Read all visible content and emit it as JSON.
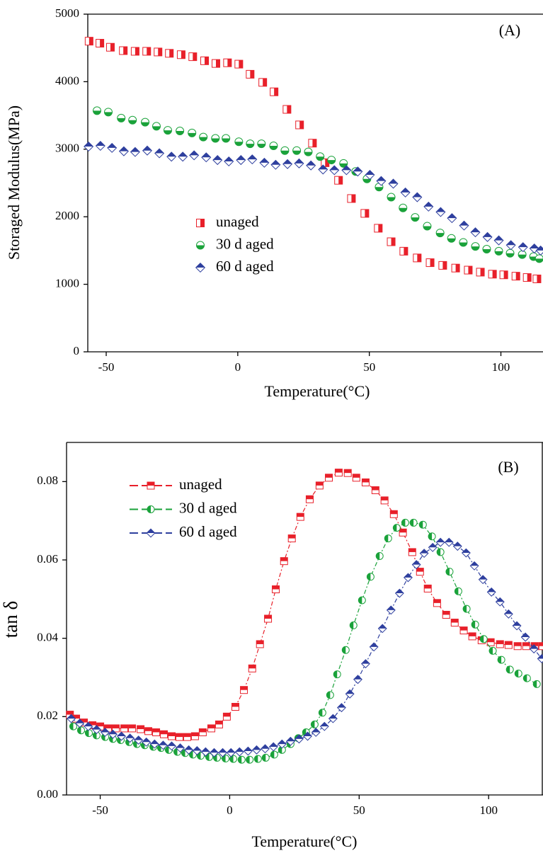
{
  "chart_data": [
    {
      "type": "scatter",
      "annotation": "(A)",
      "xlabel": "Temperature(°C)",
      "ylabel": "Storaged Modulus(MPa)",
      "xlim": [
        -57,
        116
      ],
      "ylim": [
        0,
        5000
      ],
      "xticks": [
        -50,
        0,
        50,
        100
      ],
      "yticks": [
        0,
        1000,
        2000,
        3000,
        4000,
        5000
      ],
      "series": [
        {
          "name": "unaged",
          "color": "#e8202a",
          "marker": "square",
          "half": "right",
          "x": [
            -56.5,
            -52.4,
            -48.4,
            -43.5,
            -39,
            -34.6,
            -30.3,
            -26,
            -21.5,
            -17.1,
            -12.6,
            -8.3,
            -3.9,
            0.4,
            4.7,
            9.5,
            13.8,
            18.7,
            23.5,
            28.4,
            33.2,
            38.3,
            43.2,
            48.3,
            53.4,
            58.3,
            63.1,
            68.2,
            73.1,
            77.9,
            82.8,
            87.6,
            92.2,
            96.8,
            101.1,
            105.7,
            110,
            113.7
          ],
          "values": [
            4600,
            4570,
            4510,
            4460,
            4450,
            4450,
            4440,
            4420,
            4400,
            4370,
            4310,
            4270,
            4280,
            4260,
            4110,
            3990,
            3850,
            3590,
            3360,
            3090,
            2800,
            2540,
            2270,
            2050,
            1830,
            1630,
            1490,
            1390,
            1320,
            1280,
            1240,
            1210,
            1180,
            1150,
            1140,
            1120,
            1100,
            1080
          ]
        },
        {
          "name": "30 d aged",
          "color": "#1aa23a",
          "marker": "circle",
          "half": "bottom",
          "x": [
            -53.5,
            -49.2,
            -44.3,
            -40,
            -35.2,
            -30.9,
            -26.6,
            -22,
            -17.4,
            -13.1,
            -8.5,
            -4.5,
            0.4,
            4.7,
            9,
            13.6,
            17.9,
            22.4,
            26.8,
            31.3,
            35.6,
            40.2,
            44.8,
            49.1,
            53.7,
            58.3,
            62.8,
            67.4,
            72,
            76.9,
            81.2,
            85.7,
            90.3,
            94.6,
            99.2,
            103.5,
            108.1,
            112.4,
            114.6
          ],
          "values": [
            3570,
            3550,
            3460,
            3430,
            3400,
            3340,
            3280,
            3270,
            3240,
            3180,
            3160,
            3160,
            3110,
            3080,
            3080,
            3050,
            2980,
            2980,
            2960,
            2890,
            2840,
            2790,
            2670,
            2560,
            2440,
            2290,
            2130,
            1990,
            1860,
            1760,
            1680,
            1620,
            1560,
            1520,
            1490,
            1460,
            1440,
            1410,
            1380
          ]
        },
        {
          "name": "60 d aged",
          "color": "#2e3f9e",
          "marker": "diamond",
          "half": "top",
          "x": [
            -56.7,
            -52.2,
            -47.8,
            -43.3,
            -39,
            -34.4,
            -29.8,
            -25.2,
            -20.9,
            -16.6,
            -12,
            -7.7,
            -3.4,
            1.2,
            5.5,
            10.1,
            14.4,
            18.9,
            23.3,
            27.8,
            32.4,
            36.7,
            41.3,
            45.6,
            50.2,
            54.5,
            59.1,
            63.7,
            68.2,
            72.5,
            77.1,
            81.4,
            86,
            90.3,
            94.9,
            99.2,
            103.8,
            108.4,
            112.7,
            115.1
          ],
          "values": [
            3040,
            3050,
            3020,
            2970,
            2960,
            2980,
            2940,
            2890,
            2890,
            2910,
            2880,
            2840,
            2820,
            2840,
            2850,
            2800,
            2770,
            2780,
            2790,
            2760,
            2700,
            2690,
            2690,
            2670,
            2620,
            2530,
            2490,
            2360,
            2290,
            2150,
            2070,
            1980,
            1870,
            1770,
            1700,
            1650,
            1580,
            1550,
            1530,
            1500
          ]
        }
      ]
    },
    {
      "type": "scatter",
      "annotation": "(B)",
      "xlabel": "Temperature(°C)",
      "ylabel": "tan δ",
      "line": "dashed",
      "xlim": [
        -63,
        121
      ],
      "ylim": [
        0,
        0.09
      ],
      "xticks": [
        -50,
        0,
        50,
        100
      ],
      "yticks": [
        {
          "value": 0,
          "label": "0.00"
        },
        {
          "value": 0.02,
          "label": "0.02"
        },
        {
          "value": 0.04,
          "label": "0.04"
        },
        {
          "value": 0.06,
          "label": "0.06"
        },
        {
          "value": 0.08,
          "label": "0.08"
        }
      ],
      "series": [
        {
          "name": "unaged",
          "color": "#e8202a",
          "marker": "square",
          "half": "top",
          "x": [
            -61.7,
            -59.3,
            -56.3,
            -53,
            -50,
            -47,
            -44,
            -40.7,
            -37.7,
            -34.4,
            -31.4,
            -28.4,
            -25.4,
            -22.4,
            -19.4,
            -16.4,
            -13.4,
            -10.4,
            -7.1,
            -4.1,
            -1.1,
            2.2,
            5.5,
            8.7,
            11.7,
            14.8,
            17.8,
            21,
            24,
            27.3,
            30.9,
            34.7,
            38.3,
            42.1,
            45.6,
            48.9,
            52.5,
            56.3,
            59.8,
            63.4,
            66.9,
            70.5,
            73.5,
            76.5,
            80.1,
            83.6,
            86.9,
            90.4,
            93.7,
            97.3,
            100.8,
            104.4,
            107.7,
            111.2,
            114.5,
            117.8,
            120.8
          ],
          "values": [
            0.0205,
            0.0195,
            0.0185,
            0.0178,
            0.0175,
            0.017,
            0.017,
            0.017,
            0.017,
            0.0168,
            0.0163,
            0.016,
            0.0155,
            0.015,
            0.0148,
            0.0148,
            0.015,
            0.016,
            0.017,
            0.018,
            0.02,
            0.0225,
            0.0268,
            0.0323,
            0.0385,
            0.045,
            0.0525,
            0.0597,
            0.0655,
            0.071,
            0.0755,
            0.079,
            0.081,
            0.0823,
            0.0822,
            0.081,
            0.0798,
            0.0778,
            0.0752,
            0.0717,
            0.067,
            0.062,
            0.057,
            0.0527,
            0.049,
            0.046,
            0.044,
            0.042,
            0.0405,
            0.0395,
            0.039,
            0.0385,
            0.0383,
            0.038,
            0.038,
            0.038,
            0.038
          ]
        },
        {
          "name": "30 d aged",
          "color": "#1aa23a",
          "marker": "circle",
          "half": "left",
          "x": [
            -60.4,
            -57.4,
            -54.4,
            -51.4,
            -48.1,
            -45.1,
            -42.1,
            -38.8,
            -35.8,
            -32.8,
            -29.5,
            -26.5,
            -23.5,
            -20.2,
            -17.2,
            -14.2,
            -11.2,
            -7.9,
            -4.9,
            -1.6,
            1.4,
            4.6,
            7.7,
            10.9,
            13.9,
            17.2,
            20.2,
            23.5,
            26.5,
            29.5,
            32.8,
            35.8,
            38.8,
            41.5,
            44.8,
            47.8,
            51.1,
            54.4,
            57.9,
            61.2,
            64.5,
            67.8,
            71,
            74.6,
            78.1,
            81.4,
            84.9,
            88.3,
            91.5,
            94.8,
            98.1,
            101.6,
            104.9,
            108.2,
            111.5,
            114.8,
            118.6
          ],
          "values": [
            0.0175,
            0.0165,
            0.0158,
            0.0152,
            0.0148,
            0.0143,
            0.014,
            0.0135,
            0.013,
            0.0127,
            0.0123,
            0.012,
            0.0115,
            0.011,
            0.0107,
            0.0103,
            0.01,
            0.0097,
            0.0095,
            0.0093,
            0.0092,
            0.009,
            0.009,
            0.0092,
            0.0095,
            0.0103,
            0.0115,
            0.013,
            0.0145,
            0.016,
            0.018,
            0.021,
            0.0255,
            0.0308,
            0.037,
            0.0433,
            0.0497,
            0.0557,
            0.061,
            0.0655,
            0.0682,
            0.0695,
            0.0695,
            0.069,
            0.066,
            0.062,
            0.057,
            0.052,
            0.0475,
            0.0435,
            0.0398,
            0.0368,
            0.0345,
            0.032,
            0.031,
            0.0298,
            0.0283
          ]
        },
        {
          "name": "60 d aged",
          "color": "#2e3f9e",
          "marker": "diamond",
          "half": "top",
          "x": [
            -61.2,
            -57.9,
            -54.6,
            -51.4,
            -48.1,
            -45.1,
            -41.8,
            -38.5,
            -35.2,
            -32.2,
            -29,
            -25.7,
            -22.4,
            -19.1,
            -15.8,
            -12.6,
            -9.3,
            -6,
            -2.7,
            0.5,
            3.8,
            7.1,
            10.4,
            13.7,
            16.9,
            20.2,
            23.5,
            26.8,
            30.1,
            33.3,
            36.6,
            39.9,
            43.2,
            46.4,
            49.5,
            52.5,
            55.7,
            59,
            62.3,
            65.6,
            68.9,
            72.1,
            75.1,
            78.4,
            81.4,
            84.7,
            88,
            91.3,
            94.5,
            97.8,
            101.1,
            104.4,
            107.7,
            110.9,
            114.2,
            117.5,
            120.5
          ],
          "values": [
            0.0195,
            0.0183,
            0.0175,
            0.0167,
            0.016,
            0.0155,
            0.015,
            0.0145,
            0.014,
            0.0135,
            0.013,
            0.0127,
            0.0125,
            0.012,
            0.0115,
            0.0113,
            0.011,
            0.0108,
            0.0108,
            0.0108,
            0.011,
            0.0112,
            0.0115,
            0.0118,
            0.0123,
            0.013,
            0.0137,
            0.0143,
            0.015,
            0.016,
            0.0175,
            0.0195,
            0.0223,
            0.0258,
            0.0295,
            0.0335,
            0.0378,
            0.0425,
            0.0472,
            0.0515,
            0.0555,
            0.0588,
            0.0617,
            0.0632,
            0.0645,
            0.0645,
            0.0635,
            0.0618,
            0.0585,
            0.055,
            0.0518,
            0.0493,
            0.0462,
            0.0432,
            0.0403,
            0.0373,
            0.0348
          ]
        }
      ]
    }
  ]
}
